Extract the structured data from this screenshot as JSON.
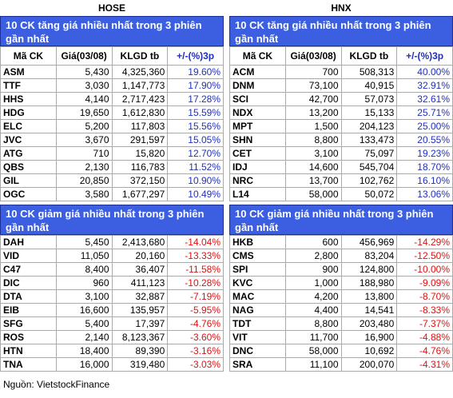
{
  "panels": [
    {
      "exchange": "HOSE",
      "up_title": "10 CK tăng giá nhiều nhất trong 3 phiên gần nhất",
      "columns": [
        "Mã CK",
        "Giá(03/08)",
        "KLGD tb",
        "+/-(%)3p"
      ],
      "up_rows": [
        [
          "ASM",
          "5,430",
          "4,325,360",
          "19.60%"
        ],
        [
          "TTF",
          "3,030",
          "1,147,773",
          "17.90%"
        ],
        [
          "HHS",
          "4,140",
          "2,717,423",
          "17.28%"
        ],
        [
          "HDG",
          "19,650",
          "1,612,830",
          "15.59%"
        ],
        [
          "ELC",
          "5,200",
          "117,803",
          "15.56%"
        ],
        [
          "JVC",
          "3,670",
          "291,597",
          "15.05%"
        ],
        [
          "ATG",
          "710",
          "15,820",
          "12.70%"
        ],
        [
          "QBS",
          "2,130",
          "116,783",
          "11.52%"
        ],
        [
          "GIL",
          "20,850",
          "372,150",
          "10.90%"
        ],
        [
          "OGC",
          "3,580",
          "1,677,297",
          "10.49%"
        ]
      ],
      "down_title": "10 CK giảm giá nhiều nhất trong 3 phiên gần nhất",
      "down_rows": [
        [
          "DAH",
          "5,450",
          "2,413,680",
          "-14.04%"
        ],
        [
          "VID",
          "11,050",
          "20,160",
          "-13.33%"
        ],
        [
          "C47",
          "8,400",
          "36,407",
          "-11.58%"
        ],
        [
          "DIC",
          "960",
          "411,123",
          "-10.28%"
        ],
        [
          "DTA",
          "3,100",
          "32,887",
          "-7.19%"
        ],
        [
          "EIB",
          "16,600",
          "135,957",
          "-5.95%"
        ],
        [
          "SFG",
          "5,400",
          "17,397",
          "-4.76%"
        ],
        [
          "ROS",
          "2,140",
          "8,123,367",
          "-3.60%"
        ],
        [
          "HTN",
          "18,400",
          "89,390",
          "-3.16%"
        ],
        [
          "TNA",
          "16,000",
          "319,480",
          "-3.03%"
        ]
      ]
    },
    {
      "exchange": "HNX",
      "up_title": "10 CK tăng giá nhiều nhất trong 3 phiên gần nhất",
      "columns": [
        "Mã CK",
        "Giá(03/08)",
        "KLGD tb",
        "+/-(%)3p"
      ],
      "up_rows": [
        [
          "ACM",
          "700",
          "508,313",
          "40.00%"
        ],
        [
          "DNM",
          "73,100",
          "40,915",
          "32.91%"
        ],
        [
          "SCI",
          "42,700",
          "57,073",
          "32.61%"
        ],
        [
          "NDX",
          "13,200",
          "15,133",
          "25.71%"
        ],
        [
          "MPT",
          "1,500",
          "204,123",
          "25.00%"
        ],
        [
          "SHN",
          "8,800",
          "133,473",
          "20.55%"
        ],
        [
          "CET",
          "3,100",
          "75,097",
          "19.23%"
        ],
        [
          "IDJ",
          "14,600",
          "545,704",
          "18.70%"
        ],
        [
          "NRC",
          "13,700",
          "102,762",
          "16.10%"
        ],
        [
          "L14",
          "58,000",
          "50,072",
          "13.06%"
        ]
      ],
      "down_title": "10 CK giảm giá nhiều nhất trong 3 phiên gần nhất",
      "down_rows": [
        [
          "HKB",
          "600",
          "456,969",
          "-14.29%"
        ],
        [
          "CMS",
          "2,800",
          "83,204",
          "-12.50%"
        ],
        [
          "SPI",
          "900",
          "124,800",
          "-10.00%"
        ],
        [
          "KVC",
          "1,000",
          "188,980",
          "-9.09%"
        ],
        [
          "MAC",
          "4,200",
          "13,800",
          "-8.70%"
        ],
        [
          "NAG",
          "4,400",
          "14,541",
          "-8.33%"
        ],
        [
          "TDT",
          "8,800",
          "203,480",
          "-7.37%"
        ],
        [
          "VIT",
          "11,700",
          "16,900",
          "-4.88%"
        ],
        [
          "DNC",
          "58,000",
          "10,692",
          "-4.76%"
        ],
        [
          "SRA",
          "11,100",
          "200,070",
          "-4.31%"
        ]
      ]
    }
  ],
  "footer": {
    "source": "Nguồn: VietstockFinance"
  }
}
